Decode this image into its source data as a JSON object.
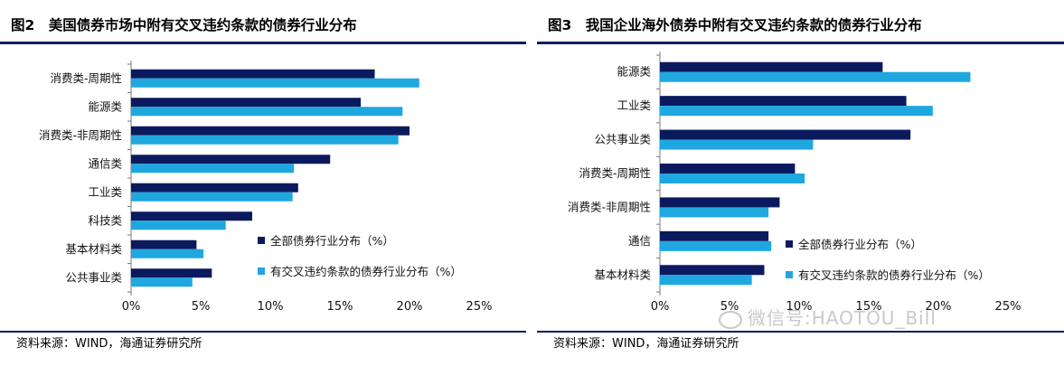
{
  "panels": [
    {
      "title": "图2　美国债券市场中附有交叉违约条款的债券行业分布",
      "source": "资料来源：WIND，海通证券研究所"
    },
    {
      "title": "图3　我国企业海外债券中附有交叉违约条款的债券行业分布",
      "source": "资料来源：WIND，海通证券研究所"
    }
  ],
  "watermark": "微信号:HAOTOU_Bill",
  "colors": {
    "series1": "#0b1a5e",
    "series2": "#1fa7e0",
    "rule": "#0d1f5c"
  },
  "chart_data": [
    {
      "type": "bar",
      "orientation": "horizontal",
      "title": "图2　美国债券市场中附有交叉违约条款的债券行业分布",
      "categories": [
        "消费类-周期性",
        "能源类",
        "消费类-非周期性",
        "通信类",
        "工业类",
        "科技类",
        "基本材料类",
        "公共事业类"
      ],
      "series": [
        {
          "name": "全部债券行业分布（%）",
          "values": [
            17.5,
            16.5,
            20.0,
            14.3,
            12.0,
            8.7,
            4.7,
            5.8
          ]
        },
        {
          "name": "有交叉违约条款的债券行业分布（%）",
          "values": [
            20.7,
            19.5,
            19.2,
            11.7,
            11.6,
            6.8,
            5.2,
            4.4
          ]
        }
      ],
      "xlim": [
        0,
        25
      ],
      "xticks": [
        "0%",
        "5%",
        "10%",
        "15%",
        "20%",
        "25%"
      ],
      "xlabel": "",
      "ylabel": "",
      "legend": "bottom-right inside plot"
    },
    {
      "type": "bar",
      "orientation": "horizontal",
      "title": "图3　我国企业海外债券中附有交叉违约条款的债券行业分布",
      "categories": [
        "能源类",
        "工业类",
        "公共事业类",
        "消费类-周期性",
        "消费类-非周期性",
        "通信",
        "基本材料类"
      ],
      "series": [
        {
          "name": "全部债券行业分布（%）",
          "values": [
            16.0,
            17.7,
            18.0,
            9.7,
            8.6,
            7.8,
            7.5
          ]
        },
        {
          "name": "有交叉违约条款的债券行业分布（%）",
          "values": [
            22.3,
            19.6,
            11.0,
            10.4,
            7.8,
            8.0,
            6.6
          ]
        }
      ],
      "xlim": [
        0,
        25
      ],
      "xticks": [
        "0%",
        "5%",
        "10%",
        "15%",
        "20%",
        "25%"
      ],
      "xlabel": "",
      "ylabel": "",
      "legend": "bottom-right inside plot"
    }
  ]
}
